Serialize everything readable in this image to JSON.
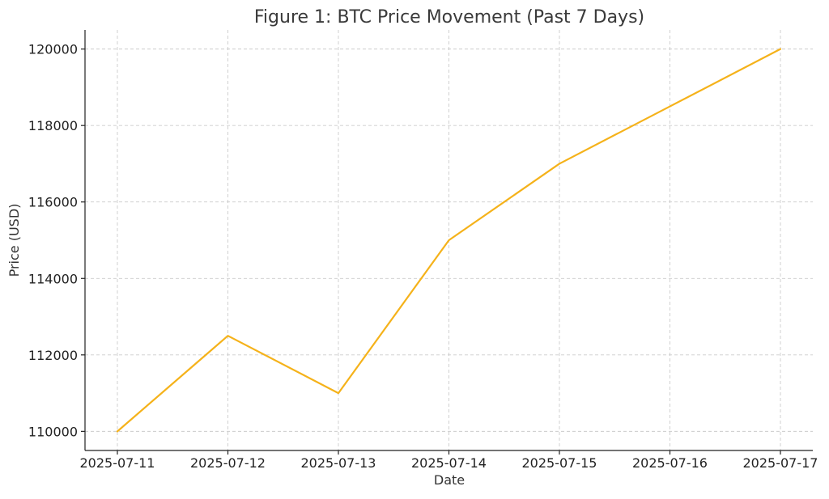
{
  "chart_data": {
    "type": "line",
    "title": "Figure 1: BTC Price Movement (Past 7 Days)",
    "xlabel": "Date",
    "ylabel": "Price (USD)",
    "categories": [
      "2025-07-11",
      "2025-07-12",
      "2025-07-13",
      "2025-07-14",
      "2025-07-15",
      "2025-07-16",
      "2025-07-17"
    ],
    "series": [
      {
        "values": [
          110000,
          112500,
          111000,
          115000,
          117000,
          118500,
          120000
        ],
        "color": "#f5b21a"
      }
    ],
    "ylim": [
      109500,
      120500
    ],
    "yticks": [
      110000,
      112000,
      114000,
      116000,
      118000,
      120000
    ],
    "grid": true,
    "legend": "none"
  }
}
